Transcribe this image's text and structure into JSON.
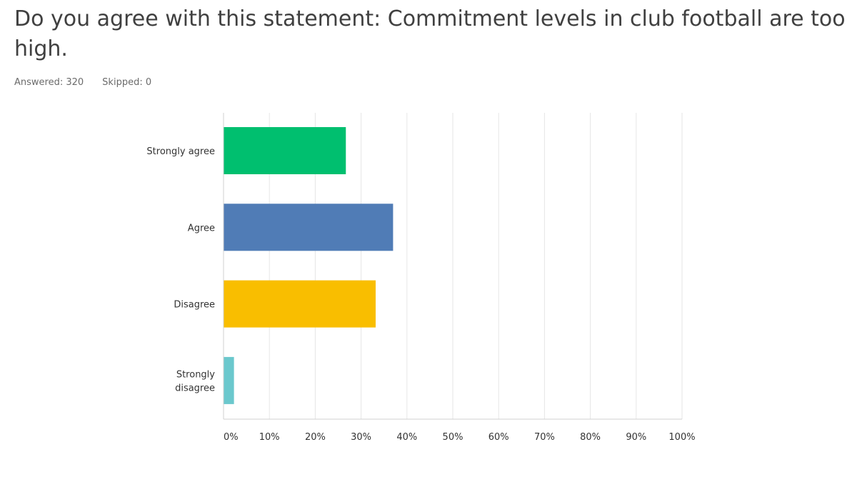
{
  "question": {
    "title": "Do you agree with this statement: Commitment levels in club football are too high."
  },
  "stats": {
    "answered": "Answered: 320",
    "skipped": "Skipped: 0"
  },
  "chart_data": {
    "type": "bar",
    "orientation": "horizontal",
    "categories": [
      [
        "Strongly agree"
      ],
      [
        "Agree"
      ],
      [
        "Disagree"
      ],
      [
        "Strongly",
        "disagree"
      ]
    ],
    "values": [
      26.6,
      36.9,
      33.1,
      2.2
    ],
    "colors": [
      "#00bf6f",
      "#507cb6",
      "#f9be00",
      "#6bc8cd"
    ],
    "xlim": [
      0,
      100
    ],
    "ticks": [
      "0%",
      "10%",
      "20%",
      "30%",
      "40%",
      "50%",
      "60%",
      "70%",
      "80%",
      "90%",
      "100%"
    ],
    "grid": true,
    "title": "",
    "xlabel": "",
    "ylabel": ""
  }
}
